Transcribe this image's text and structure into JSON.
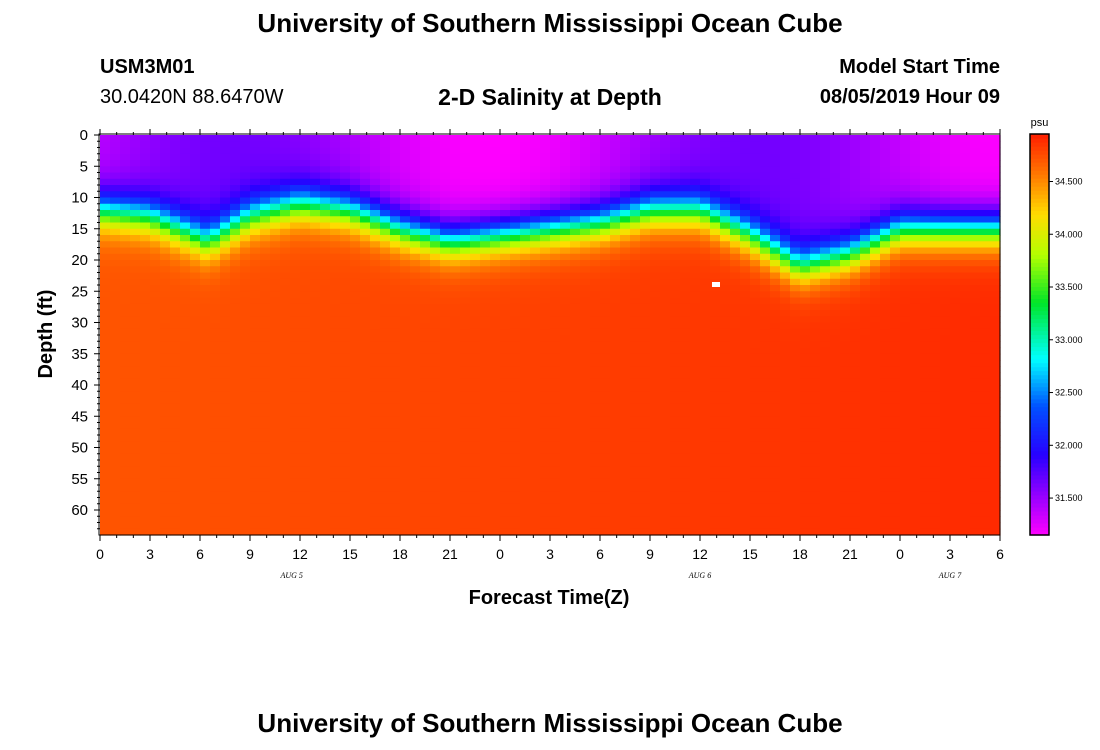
{
  "page": {
    "title_top": "University of Southern Mississippi Ocean Cube",
    "title_bottom": "University of Southern Mississippi Ocean Cube",
    "station_id": "USM3M01",
    "coordinates": "30.0420N 88.6470W",
    "subtitle": "2-D Salinity at Depth",
    "model_start_label": "Model Start Time",
    "model_start_value": "08/05/2019 Hour 09"
  },
  "colors": {
    "low": "#ff00ff",
    "high": "#ff3000",
    "axis": "#000000"
  },
  "chart_data": {
    "type": "heatmap",
    "title": "2-D Salinity at Depth",
    "xlabel": "Forecast Time(Z)",
    "ylabel": "Depth (ft)",
    "x_range_hours": [
      0,
      54
    ],
    "x_ticks": [
      "0",
      "3",
      "6",
      "9",
      "12",
      "15",
      "18",
      "21",
      "0",
      "3",
      "6",
      "9",
      "12",
      "15",
      "18",
      "21",
      "0",
      "3",
      "6"
    ],
    "x_tick_hours": [
      0,
      3,
      6,
      9,
      12,
      15,
      18,
      21,
      24,
      27,
      30,
      33,
      36,
      39,
      42,
      45,
      48,
      51,
      54
    ],
    "day_labels": [
      {
        "text": "AUG 5",
        "hour": 11.5
      },
      {
        "text": "AUG 6",
        "hour": 36
      },
      {
        "text": "AUG 7",
        "hour": 51
      }
    ],
    "y_range": [
      0,
      64
    ],
    "y_ticks": [
      "0",
      "5",
      "10",
      "15",
      "20",
      "25",
      "30",
      "35",
      "40",
      "45",
      "50",
      "55",
      "60"
    ],
    "y_tick_values": [
      0,
      5,
      10,
      15,
      20,
      25,
      30,
      35,
      40,
      45,
      50,
      55,
      60
    ],
    "colorbar": {
      "unit": "psu",
      "range": [
        31.15,
        34.95
      ],
      "tick_labels": [
        "31.500",
        "32.000",
        "32.500",
        "33.000",
        "33.500",
        "34.000",
        "34.500"
      ],
      "tick_values": [
        31.5,
        32.0,
        32.5,
        33.0,
        33.5,
        34.0,
        34.5
      ]
    },
    "halocline_depth_ft": [
      {
        "hour": 0,
        "depth": 12
      },
      {
        "hour": 3,
        "depth": 13
      },
      {
        "hour": 6.5,
        "depth": 17
      },
      {
        "hour": 9,
        "depth": 13
      },
      {
        "hour": 12,
        "depth": 11
      },
      {
        "hour": 15,
        "depth": 12
      },
      {
        "hour": 18,
        "depth": 15
      },
      {
        "hour": 21,
        "depth": 17
      },
      {
        "hour": 24,
        "depth": 16
      },
      {
        "hour": 27,
        "depth": 15
      },
      {
        "hour": 30,
        "depth": 14
      },
      {
        "hour": 33,
        "depth": 12
      },
      {
        "hour": 36,
        "depth": 12
      },
      {
        "hour": 39,
        "depth": 16
      },
      {
        "hour": 42,
        "depth": 21
      },
      {
        "hour": 45,
        "depth": 19
      },
      {
        "hour": 48,
        "depth": 15
      },
      {
        "hour": 51,
        "depth": 15
      },
      {
        "hour": 54,
        "depth": 15
      }
    ],
    "surface_min_psu": 31.4,
    "deep_psu_start": 34.72,
    "deep_psu_end": 34.9
  }
}
